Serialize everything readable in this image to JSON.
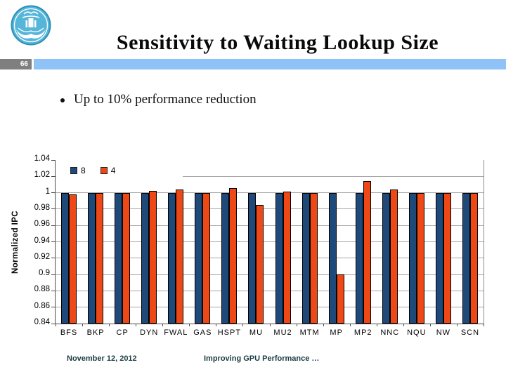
{
  "header": {
    "page_number": "66",
    "title": "Sensitivity to Waiting Lookup Size"
  },
  "logo": {
    "name": "university-emblem",
    "color": "#56B6DA"
  },
  "bullet": {
    "text": "Up to 10% performance reduction"
  },
  "chart_data": {
    "type": "bar",
    "title": "",
    "xlabel": "",
    "ylabel": "Normalized IPC",
    "ylim": [
      0.84,
      1.04
    ],
    "yticks": [
      1.04,
      1.02,
      1,
      0.98,
      0.96,
      0.94,
      0.92,
      0.9,
      0.88,
      0.86,
      0.84
    ],
    "ytick_labels": [
      "1.04",
      "1.02",
      "1",
      "0.98",
      "0.96",
      "0.94",
      "0.92",
      "0.9",
      "0.88",
      "0.86",
      "0.84"
    ],
    "grid": true,
    "legend_position": "top-left",
    "categories": [
      "BFS",
      "BKP",
      "CP",
      "DYN",
      "FWAL",
      "GAS",
      "HSPT",
      "MU",
      "MU2",
      "MTM",
      "MP",
      "MP2",
      "NNC",
      "NQU",
      "NW",
      "SCN"
    ],
    "series": [
      {
        "name": "8",
        "color": "#1F4978",
        "values": [
          1,
          1,
          1,
          1,
          1,
          1,
          1,
          1,
          1,
          1,
          1,
          1,
          1,
          1,
          1,
          1
        ]
      },
      {
        "name": "4",
        "color": "#EE4816",
        "values": [
          0.998,
          1,
          1,
          1.002,
          1.004,
          1,
          1.006,
          0.985,
          1.001,
          1,
          0.9,
          1.014,
          1.004,
          1,
          1,
          1
        ]
      }
    ]
  },
  "footer": {
    "date": "November 12, 2012",
    "title": "Improving GPU Performance …"
  }
}
